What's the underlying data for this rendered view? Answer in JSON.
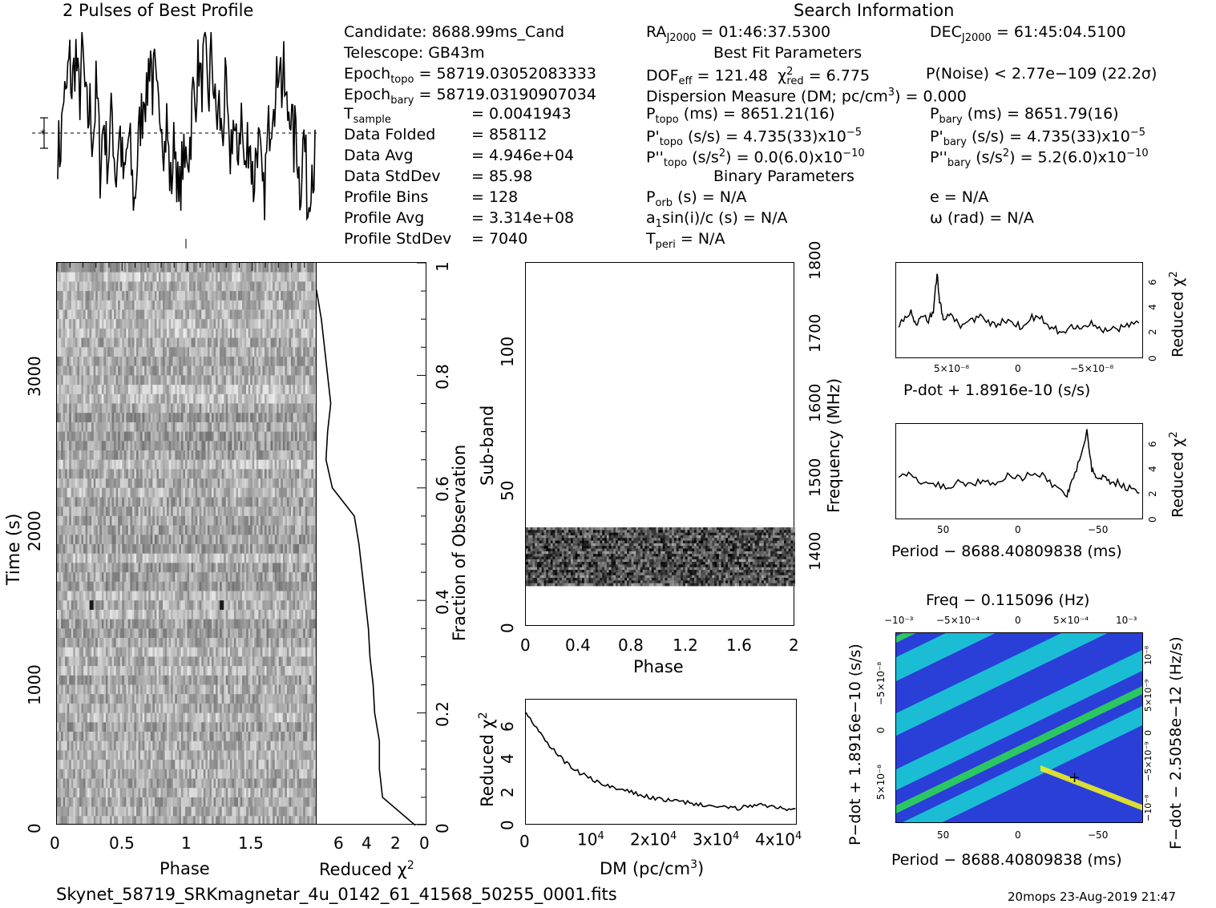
{
  "header": {
    "profile_title": "2 Pulses of Best Profile",
    "search_title": "Search Information",
    "footer_file": "Skynet_58719_SRKmagnetar_4u_0142_61_41568_50255_0001.fits",
    "footer_stamp": "20mops 23-Aug-2019 21:47"
  },
  "info": {
    "candidate": "Candidate:  8688.99ms_Cand",
    "telescope": "Telescope:  GB43m",
    "epoch_topo_label": "Epoch",
    "epoch_topo_sub": "topo",
    "epoch_topo_value": "= 58719.03052083333",
    "epoch_bary_label": "Epoch",
    "epoch_bary_sub": "bary",
    "epoch_bary_value": "= 58719.03190907034",
    "tsample_label": "T",
    "tsample_sub": "sample",
    "tsample_value": "=   0.0041943",
    "data_folded_label": "Data Folded",
    "data_folded_value": "=   858112",
    "data_avg_label": "Data Avg",
    "data_avg_value": "=   4.946e+04",
    "data_std_label": "Data StdDev",
    "data_std_value": "=   85.98",
    "prof_bins_label": "Profile Bins",
    "prof_bins_value": "=   128",
    "prof_avg_label": "Profile Avg",
    "prof_avg_value": "=   3.314e+08",
    "prof_std_label": "Profile StdDev",
    "prof_std_value": "=   7040"
  },
  "search": {
    "ra_label": "RA",
    "ra_sub": "J2000",
    "ra_value": "= 01:46:37.5300",
    "dec_label": "DEC",
    "dec_sub": "J2000",
    "dec_value": "= 61:45:04.5100",
    "best_fit_title": "Best Fit Parameters",
    "dof_label": "DOF",
    "dof_sub": "eff",
    "dof_value": "= 121.48",
    "chi_label": "χ",
    "chi_sup": "2",
    "chi_sub": "red",
    "chi_value": "= 6.775",
    "pnoise": "P(Noise) < 2.77e−109   (22.2σ)",
    "dm_line": "Dispersion Measure (DM; pc/cm",
    "dm_sup": "3",
    "dm_tail": ") = 0.000",
    "ptopo_label": "P",
    "ptopo_sub": "topo",
    "ptopo_value": "(ms) =  8651.21(16)",
    "pbary_label": "P",
    "pbary_sub": "bary",
    "pbary_value": "(ms) =  8651.79(16)",
    "pdtopo_label": "P'",
    "pdtopo_sub": "topo",
    "pdtopo_value": "(s/s) =  4.735(33)x10",
    "pdtopo_exp": "−5",
    "pdbary_label": "P'",
    "pdbary_sub": "bary",
    "pdbary_value": "(s/s) =  4.735(33)x10",
    "pdbary_exp": "−5",
    "pddtopo_label": "P''",
    "pddtopo_sub": "topo",
    "pddtopo_value": "(s/s",
    "pddtopo_sup": "2",
    "pddtopo_tail": ") = 0.0(6.0)x10",
    "pddtopo_exp": "−10",
    "pddbary_label": "P''",
    "pddbary_sub": "bary",
    "pddbary_value": "(s/s",
    "pddbary_sup": "2",
    "pddbary_tail": ") =  5.2(6.0)x10",
    "pddbary_exp": "−10",
    "binary_title": "Binary Parameters",
    "porb_label": "P",
    "porb_sub": "orb",
    "porb_value": "(s) = N/A",
    "e_value": "e = N/A",
    "a1_value": "a",
    "a1_sub": "1",
    "a1_tail": "sin(i)/c (s) = N/A",
    "omega_value": "ω (rad) = N/A",
    "tperi_label": "T",
    "tperi_sub": "peri",
    "tperi_value": "= N/A"
  },
  "axes": {
    "time_ylabel": "Time (s)",
    "time_yticks": [
      "0",
      "1000",
      "2000",
      "3000"
    ],
    "phase_xlabel": "Phase",
    "phase_xticks": [
      "0",
      "0.5",
      "1",
      "1.5"
    ],
    "redchi_xlabel": "Reduced χ",
    "redchi_xsup": "2",
    "redchi_xticks": [
      "6",
      "4",
      "2",
      "0"
    ],
    "frac_ylabel": "Fraction of Observation",
    "frac_yticks": [
      "0",
      "0.2",
      "0.4",
      "0.6",
      "0.8",
      "1"
    ],
    "subband_ylabel": "Sub-band",
    "subband_yticks": [
      "0",
      "50",
      "100"
    ],
    "freq_ylabel": "Frequency (MHz)",
    "freq_yticks": [
      "1400",
      "1500",
      "1600",
      "1700",
      "1800"
    ],
    "sb_xticks": [
      "0",
      "0.4",
      "0.8",
      "1.2",
      "1.6",
      "2"
    ],
    "sb_xlabel": "Phase",
    "dm_ylabel": "Reduced χ",
    "dm_ysup": "2",
    "dm_yticks": [
      "0",
      "2",
      "4",
      "6"
    ],
    "dm_xticks": [
      "0",
      "10",
      "2x10",
      "3x10",
      "4x10"
    ],
    "dm_xsup": "4",
    "dm_xlabel": "DM (pc/cm",
    "dm_xsup3": "3",
    "dm_xlabel_tail": ")",
    "pdot_xlabel": "P-dot + 1.8916e-10 (s/s)",
    "pdot_xticks": [
      "5×10⁻⁸",
      "0",
      "−5×10⁻⁸"
    ],
    "pdot_yticks": [
      "0",
      "2",
      "4",
      "6"
    ],
    "rc_ylabel": "Reduced χ",
    "rc_ysup": "2",
    "period_xlabel": "Period − 8688.40809838 (ms)",
    "period_xticks": [
      "50",
      "0",
      "−50"
    ],
    "period_yticks": [
      "0",
      "2",
      "4",
      "6"
    ],
    "freq_top_label": "Freq − 0.115096 (Hz)",
    "freq_top_ticks": [
      "−10⁻³",
      "−5×10⁻⁴",
      "0",
      "5×10⁻⁴",
      "10⁻³"
    ],
    "pp_ylabel": "P−dot + 1.8916e−10 (s/s)",
    "pp_yticks": [
      "−5×10⁻⁸",
      "0",
      "5×10⁻⁸"
    ],
    "fdot_ylabel": "F−dot − 2.5058e−12 (Hz/s)",
    "fdot_yticks": [
      "10⁻⁸",
      "5×10⁻⁹",
      "0",
      "−5×10⁻⁹",
      "−10⁻⁸"
    ],
    "pp_xlabel": "Period − 8688.40809838 (ms)",
    "pp_xticks": [
      "50",
      "0",
      "−50"
    ]
  },
  "chart_data": [
    {
      "type": "line",
      "title": "2 Pulses of Best Profile",
      "xlabel": "Phase",
      "x_range": [
        0,
        2
      ],
      "note": "2 pulses, 128 bins per pulse; peaks near phase 0.25 and 1.25",
      "y_shape": [
        0.42,
        0.38,
        0.5,
        0.7,
        0.62,
        0.78,
        0.85,
        0.7,
        0.8,
        0.9,
        0.72,
        0.68,
        0.95,
        0.78,
        0.6,
        0.55,
        0.62,
        0.48,
        0.52,
        0.7,
        0.58,
        0.3,
        0.45,
        0.55,
        0.4,
        0.35,
        0.5,
        0.58,
        0.38,
        0.25,
        0.45,
        0.48,
        0.32,
        0.2,
        0.35,
        0.45,
        0.38,
        0.22,
        0.12,
        0.28,
        0.42,
        0.55,
        0.6,
        0.75,
        0.62,
        0.82,
        0.92,
        0.7,
        0.78,
        0.62,
        0.58,
        0.66,
        0.52,
        0.4,
        0.55,
        0.35,
        0.2,
        0.32,
        0.48,
        0.3,
        0.08,
        0.25,
        0.35,
        0.28
      ]
    },
    {
      "type": "line",
      "xlabel": "Reduced χ2",
      "ylabel": "Fraction of Observation",
      "xlim": [
        7,
        0
      ],
      "ylim": [
        0,
        1
      ],
      "y": [
        0.0,
        0.05,
        0.1,
        0.15,
        0.2,
        0.25,
        0.3,
        0.35,
        0.4,
        0.45,
        0.5,
        0.55,
        0.6,
        0.65,
        0.7,
        0.75,
        0.8,
        0.85,
        0.9,
        0.95,
        1.0
      ],
      "x": [
        0.7,
        2.8,
        3.0,
        3.0,
        3.3,
        3.4,
        3.6,
        3.7,
        3.9,
        4.1,
        4.3,
        4.6,
        6.0,
        6.4,
        6.3,
        6.1,
        6.3,
        6.5,
        6.7,
        7.0,
        7.6
      ]
    },
    {
      "type": "line",
      "xlabel": "DM (pc/cm3)",
      "ylabel": "Reduced χ2",
      "xlim": [
        0,
        42000
      ],
      "ylim": [
        0,
        7.5
      ],
      "x": [
        0,
        2000,
        4000,
        6000,
        8000,
        10000,
        12000,
        14000,
        16000,
        18000,
        20000,
        22000,
        24000,
        26000,
        28000,
        30000,
        32000,
        34000,
        36000,
        38000,
        40000,
        42000
      ],
      "y": [
        6.8,
        5.6,
        4.6,
        3.8,
        3.2,
        2.8,
        2.4,
        2.2,
        2.0,
        1.8,
        1.6,
        1.5,
        1.4,
        1.3,
        1.2,
        1.1,
        1.0,
        1.1,
        1.3,
        1.1,
        1.0,
        0.9
      ]
    },
    {
      "type": "line",
      "xlabel": "P-dot + 1.8916e-10 (s/s)",
      "ylabel": "Reduced χ2",
      "ylim": [
        0,
        7.5
      ],
      "x": [
        0.1,
        0.3,
        0.6,
        0.8,
        1.0,
        1.3,
        1.5,
        1.65,
        1.75,
        1.9,
        2.2,
        2.6,
        3.0,
        3.4,
        3.8,
        4.2,
        4.6,
        5.0,
        5.4,
        5.8,
        6.2,
        6.6,
        7.0,
        7.4,
        7.8,
        8.2,
        8.6,
        9.0,
        9.4,
        9.9
      ],
      "y": [
        2.5,
        3.2,
        3.8,
        2.8,
        3.5,
        3.0,
        3.6,
        6.8,
        4.5,
        3.2,
        3.6,
        2.6,
        3.0,
        3.4,
        2.6,
        2.8,
        3.0,
        2.5,
        3.2,
        3.4,
        2.4,
        2.2,
        2.4,
        2.6,
        2.8,
        2.3,
        2.2,
        2.4,
        2.6,
        2.8
      ]
    },
    {
      "type": "line",
      "xlabel": "Period − 8688.40809838 (ms)",
      "ylabel": "Reduced χ2",
      "ylim": [
        0,
        7.5
      ],
      "x": [
        0.1,
        0.5,
        1.0,
        1.5,
        2.0,
        2.5,
        3.0,
        3.5,
        4.0,
        4.5,
        5.0,
        5.5,
        6.0,
        6.5,
        6.9,
        7.1,
        7.4,
        7.7,
        7.9,
        8.1,
        8.4,
        8.7,
        9.1,
        9.5,
        9.9
      ],
      "y": [
        3.5,
        3.6,
        2.8,
        3.0,
        2.5,
        3.0,
        2.8,
        3.2,
        2.9,
        3.6,
        3.2,
        3.8,
        3.4,
        2.4,
        2.0,
        3.2,
        4.5,
        7.0,
        4.0,
        3.2,
        3.4,
        3.0,
        2.8,
        2.4,
        2.2
      ]
    },
    {
      "type": "heatmap",
      "title": "Freq − 0.115096 (Hz)",
      "xlabel": "Period − 8688.40809838 (ms)",
      "ylabel": "P-dot + 1.8916e-10 (s/s)",
      "marker": {
        "x": -35,
        "y": 3e-08
      }
    }
  ],
  "colors": {
    "ink": "#000000",
    "heat_blue": "#2a3fd8",
    "heat_cyan": "#18d3d3",
    "heat_green": "#2be04c",
    "heat_yellow": "#f0f020"
  }
}
